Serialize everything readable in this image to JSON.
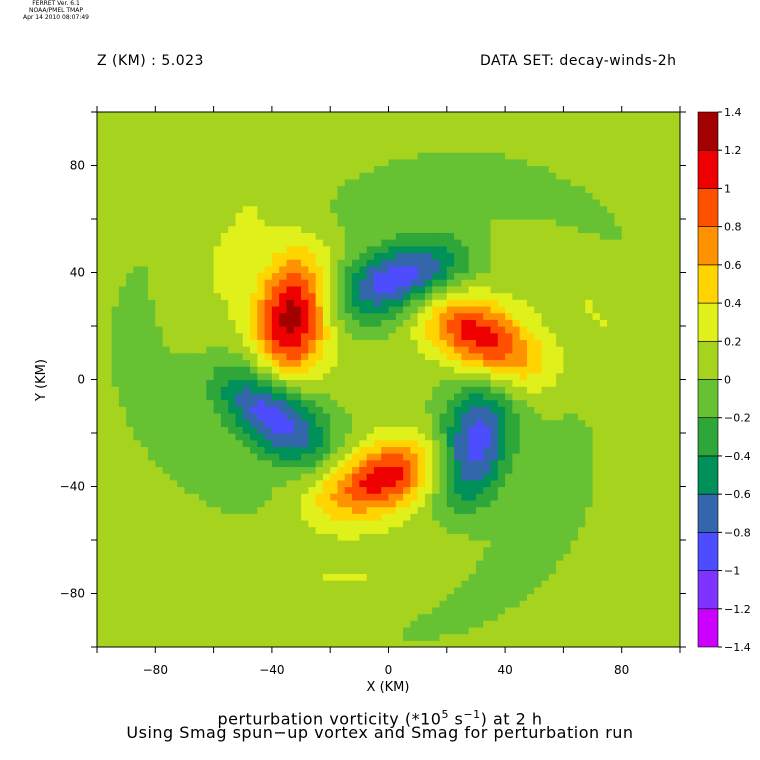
{
  "header": {
    "ferret_line1": "FERRET Ver. 6.1",
    "ferret_line2": "NOAA/PMEL TMAP",
    "ferret_line3": "Apr 14 2010 08:07:49",
    "z_label": "Z (KM) : 5.023",
    "dataset_label": "DATA SET: decay-winds-2h"
  },
  "footer": {
    "title_prefix": "perturbation vorticity (*10",
    "title_exp": "5",
    "title_mid": " s",
    "title_exp2": "−1",
    "title_suffix": ") at 2 h",
    "subtitle": "Using Smag spun−up vortex and Smag for perturbation run"
  },
  "chart_data": {
    "type": "heatmap",
    "xlabel": "X (KM)",
    "ylabel": "Y (KM)",
    "xlim": [
      -100,
      100
    ],
    "ylim": [
      -100,
      100
    ],
    "xticks": [
      -80,
      -40,
      0,
      40,
      80
    ],
    "yticks": [
      -80,
      -40,
      0,
      40,
      80
    ],
    "colorbar": {
      "levels": [
        -1.4,
        -1.2,
        -1,
        -0.8,
        -0.6,
        -0.4,
        -0.2,
        0,
        0.2,
        0.4,
        0.6,
        0.8,
        1,
        1.2,
        1.4
      ],
      "labels": [
        "1.4",
        "1.2",
        "1",
        "0.8",
        "0.6",
        "0.4",
        "0.2",
        "0",
        "−0.2",
        "−0.4",
        "−0.6",
        "−0.8",
        "−1",
        "−1.2",
        "−1.4"
      ],
      "colors": [
        "#cc00ff",
        "#7f33ff",
        "#4d4dff",
        "#3366aa",
        "#00905a",
        "#2ea639",
        "#66c232",
        "#a6d41e",
        "#dff01a",
        "#ffd400",
        "#ff9200",
        "#ff5000",
        "#ee0000",
        "#a30000"
      ]
    },
    "features": [
      {
        "kind": "positive",
        "center": [
          -33,
          24
        ],
        "peak": 1.3
      },
      {
        "kind": "positive",
        "center": [
          32,
          16
        ],
        "peak": 1.1
      },
      {
        "kind": "positive",
        "center": [
          -3,
          -37
        ],
        "peak": 1.1
      },
      {
        "kind": "negative",
        "center": [
          4,
          38
        ],
        "peak": -1.1
      },
      {
        "kind": "negative",
        "center": [
          -40,
          -13
        ],
        "peak": -1.1
      },
      {
        "kind": "negative",
        "center": [
          29,
          -25
        ],
        "peak": -1.1
      }
    ]
  }
}
